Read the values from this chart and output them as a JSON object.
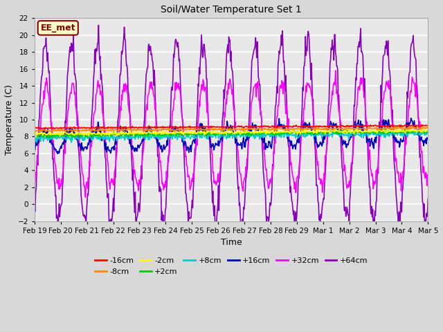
{
  "title": "Soil/Water Temperature Set 1",
  "xlabel": "Time",
  "ylabel": "Temperature (C)",
  "ylim": [
    -2,
    22
  ],
  "yticks": [
    -2,
    0,
    2,
    4,
    6,
    8,
    10,
    12,
    14,
    16,
    18,
    20,
    22
  ],
  "fig_bg": "#d8d8d8",
  "plot_bg": "#e8e8e8",
  "annotation": "EE_met",
  "annotation_bg": "#ffffcc",
  "annotation_border": "#8b0000",
  "annotation_text_color": "#8b0000",
  "colors": {
    "-16cm": "#ff0000",
    "-8cm": "#ff8800",
    "-2cm": "#ffff00",
    "+2cm": "#00cc00",
    "+8cm": "#00cccc",
    "+16cm": "#0000bb",
    "+32cm": "#ff00ff",
    "+64cm": "#8800bb"
  },
  "date_labels": [
    "Feb 19",
    "Feb 20",
    "Feb 21",
    "Feb 22",
    "Feb 23",
    "Feb 24",
    "Feb 25",
    "Feb 26",
    "Feb 27",
    "Feb 28",
    "Feb 29",
    "Mar 1",
    "Mar 2",
    "Mar 3",
    "Mar 4",
    "Mar 5"
  ],
  "n_days": 15,
  "samples_per_day": 48
}
